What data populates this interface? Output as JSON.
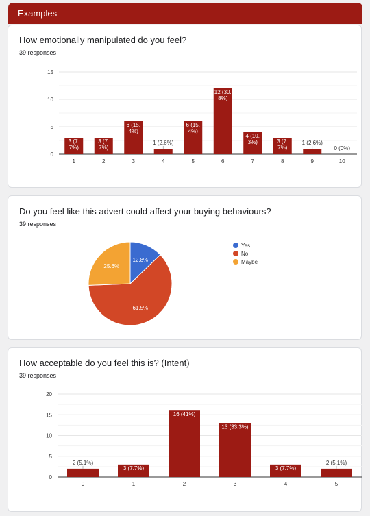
{
  "header": {
    "title": "Examples"
  },
  "questions": [
    {
      "title": "How emotionally manipulated do you feel?",
      "responses": "39 responses",
      "chart_data": {
        "type": "bar",
        "categories": [
          "1",
          "2",
          "3",
          "4",
          "5",
          "6",
          "7",
          "8",
          "9",
          "10"
        ],
        "values": [
          3,
          3,
          6,
          1,
          6,
          12,
          4,
          3,
          1,
          0
        ],
        "labels": [
          "3 (7.\n7%)",
          "3 (7.\n7%)",
          "6 (15.\n4%)",
          "1 (2.6%)",
          "6 (15.\n4%)",
          "12 (30.\n8%)",
          "4 (10.\n3%)",
          "3 (7.\n7%)",
          "1 (2.6%)",
          "0 (0%)"
        ],
        "ylim": [
          0,
          15
        ],
        "yticks": [
          "0",
          "5",
          "10",
          "15"
        ],
        "color": "#9c1b14"
      }
    },
    {
      "title": "Do you feel like this advert could affect your buying behaviours?",
      "responses": "39 responses",
      "chart_data": {
        "type": "pie",
        "slices": [
          {
            "label": "Yes",
            "value": 12.8,
            "text": "12.8%",
            "color": "#3a6bd0"
          },
          {
            "label": "No",
            "value": 61.5,
            "text": "61.5%",
            "color": "#d24726"
          },
          {
            "label": "Maybe",
            "value": 25.6,
            "text": "25.6%",
            "color": "#f3a333"
          }
        ],
        "legend": "right"
      }
    },
    {
      "title": "How acceptable do you feel this is? (Intent)",
      "responses": "39 responses",
      "chart_data": {
        "type": "bar",
        "categories": [
          "0",
          "1",
          "2",
          "3",
          "4",
          "5"
        ],
        "values": [
          2,
          3,
          16,
          13,
          3,
          2
        ],
        "labels": [
          "2 (5.1%)",
          "3 (7.7%)",
          "16 (41%)",
          "13 (33.3%)",
          "3 (7.7%)",
          "2 (5.1%)"
        ],
        "ylim": [
          0,
          20
        ],
        "yticks": [
          "0",
          "5",
          "10",
          "15",
          "20"
        ],
        "color": "#9c1b14"
      }
    }
  ]
}
